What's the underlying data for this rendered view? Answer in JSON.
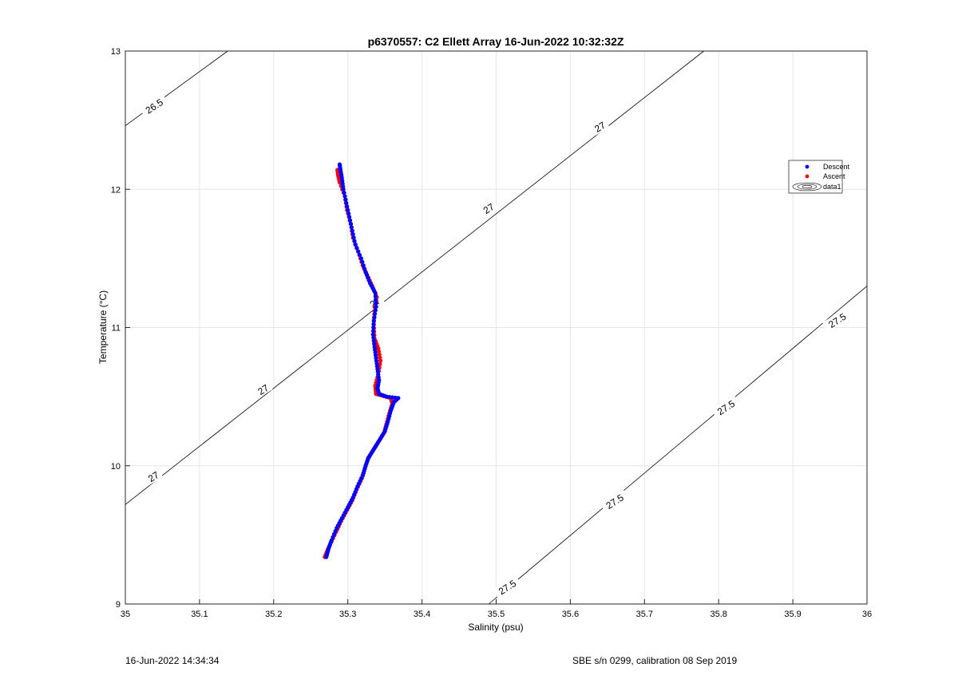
{
  "chart_data": {
    "type": "scatter",
    "title": "p6370557: C2 Ellett Array 16-Jun-2022 10:32:32Z",
    "xlabel": "Salinity (psu)",
    "ylabel": "Temperature (°C)",
    "xlim": [
      35,
      36
    ],
    "ylim": [
      9,
      13
    ],
    "xticks": [
      "35",
      "35.1",
      "35.2",
      "35.3",
      "35.4",
      "35.5",
      "35.6",
      "35.7",
      "35.8",
      "35.9",
      "36"
    ],
    "yticks": [
      "9",
      "10",
      "11",
      "12",
      "13"
    ],
    "grid": true,
    "legend_position": "right",
    "series": [
      {
        "name": "Descent",
        "color": "#0000ff",
        "profile": [
          [
            35.271,
            9.34
          ],
          [
            35.274,
            9.4
          ],
          [
            35.278,
            9.46
          ],
          [
            35.285,
            9.55
          ],
          [
            35.292,
            9.62
          ],
          [
            35.3,
            9.7
          ],
          [
            35.307,
            9.77
          ],
          [
            35.313,
            9.85
          ],
          [
            35.32,
            9.93
          ],
          [
            35.324,
            10.0
          ],
          [
            35.328,
            10.06
          ],
          [
            35.335,
            10.12
          ],
          [
            35.342,
            10.18
          ],
          [
            35.35,
            10.25
          ],
          [
            35.354,
            10.32
          ],
          [
            35.358,
            10.4
          ],
          [
            35.362,
            10.46
          ],
          [
            35.368,
            10.49
          ],
          [
            35.352,
            10.5
          ],
          [
            35.342,
            10.52
          ],
          [
            35.34,
            10.56
          ],
          [
            35.342,
            10.62
          ],
          [
            35.34,
            10.7
          ],
          [
            35.338,
            10.78
          ],
          [
            35.336,
            10.86
          ],
          [
            35.334,
            10.95
          ],
          [
            35.335,
            11.05
          ],
          [
            35.338,
            11.15
          ],
          [
            35.337,
            11.25
          ],
          [
            35.33,
            11.32
          ],
          [
            35.324,
            11.4
          ],
          [
            35.318,
            11.5
          ],
          [
            35.31,
            11.6
          ],
          [
            35.306,
            11.7
          ],
          [
            35.302,
            11.8
          ],
          [
            35.298,
            11.9
          ],
          [
            35.294,
            12.0
          ],
          [
            35.292,
            12.08
          ],
          [
            35.29,
            12.14
          ],
          [
            35.289,
            12.18
          ]
        ]
      },
      {
        "name": "Ascent",
        "color": "#ff0000",
        "profile": [
          [
            35.269,
            9.34
          ],
          [
            35.272,
            9.38
          ],
          [
            35.276,
            9.43
          ],
          [
            35.284,
            9.52
          ],
          [
            35.291,
            9.6
          ],
          [
            35.299,
            9.68
          ],
          [
            35.306,
            9.75
          ],
          [
            35.312,
            9.83
          ],
          [
            35.319,
            9.91
          ],
          [
            35.323,
            9.98
          ],
          [
            35.327,
            10.05
          ],
          [
            35.334,
            10.11
          ],
          [
            35.341,
            10.17
          ],
          [
            35.349,
            10.24
          ],
          [
            35.352,
            10.3
          ],
          [
            35.356,
            10.38
          ],
          [
            35.36,
            10.45
          ],
          [
            35.358,
            10.49
          ],
          [
            35.345,
            10.51
          ],
          [
            35.338,
            10.52
          ],
          [
            35.337,
            10.58
          ],
          [
            35.341,
            10.66
          ],
          [
            35.344,
            10.76
          ],
          [
            35.341,
            10.85
          ],
          [
            35.336,
            10.92
          ],
          [
            35.335,
            11.02
          ],
          [
            35.336,
            11.12
          ],
          [
            35.339,
            11.22
          ],
          [
            35.333,
            11.3
          ],
          [
            35.326,
            11.38
          ],
          [
            35.32,
            11.45
          ],
          [
            35.314,
            11.55
          ],
          [
            35.307,
            11.65
          ],
          [
            35.304,
            11.75
          ],
          [
            35.299,
            11.85
          ],
          [
            35.296,
            11.95
          ],
          [
            35.289,
            12.05
          ],
          [
            35.287,
            12.1
          ],
          [
            35.286,
            12.14
          ]
        ]
      },
      {
        "name": "data1",
        "kind": "density contours (sigma-theta)",
        "color": "#000000",
        "contours": [
          {
            "level": "26.5",
            "from": [
              35.0,
              12.46
            ],
            "to": [
              35.138,
              13.0
            ]
          },
          {
            "level": "27",
            "from": [
              35.0,
              9.72
            ],
            "to": [
              35.78,
              13.0
            ]
          },
          {
            "level": "27.5",
            "from": [
              35.49,
              9.0
            ],
            "to": [
              36.0,
              11.3
            ]
          }
        ],
        "contour_labels": [
          {
            "text": "26.5",
            "x": 35.039,
            "y": 12.6,
            "angle": -33
          },
          {
            "text": "27",
            "x": 35.64,
            "y": 12.45,
            "angle": -33
          },
          {
            "text": "27",
            "x": 35.49,
            "y": 11.86,
            "angle": -33
          },
          {
            "text": "27",
            "x": 35.337,
            "y": 11.18,
            "angle": -33
          },
          {
            "text": "27",
            "x": 35.186,
            "y": 10.55,
            "angle": -33
          },
          {
            "text": "27",
            "x": 35.038,
            "y": 9.92,
            "angle": -33
          },
          {
            "text": "27.5",
            "x": 35.96,
            "y": 11.05,
            "angle": -33
          },
          {
            "text": "27.5",
            "x": 35.81,
            "y": 10.42,
            "angle": -33
          },
          {
            "text": "27.5",
            "x": 35.66,
            "y": 9.74,
            "angle": -33
          },
          {
            "text": "27.5",
            "x": 35.515,
            "y": 9.12,
            "angle": -33
          }
        ]
      }
    ]
  },
  "footer": {
    "left": "16-Jun-2022 14:34:34",
    "right": "SBE s/n 0299, calibration 08 Sep 2019"
  }
}
